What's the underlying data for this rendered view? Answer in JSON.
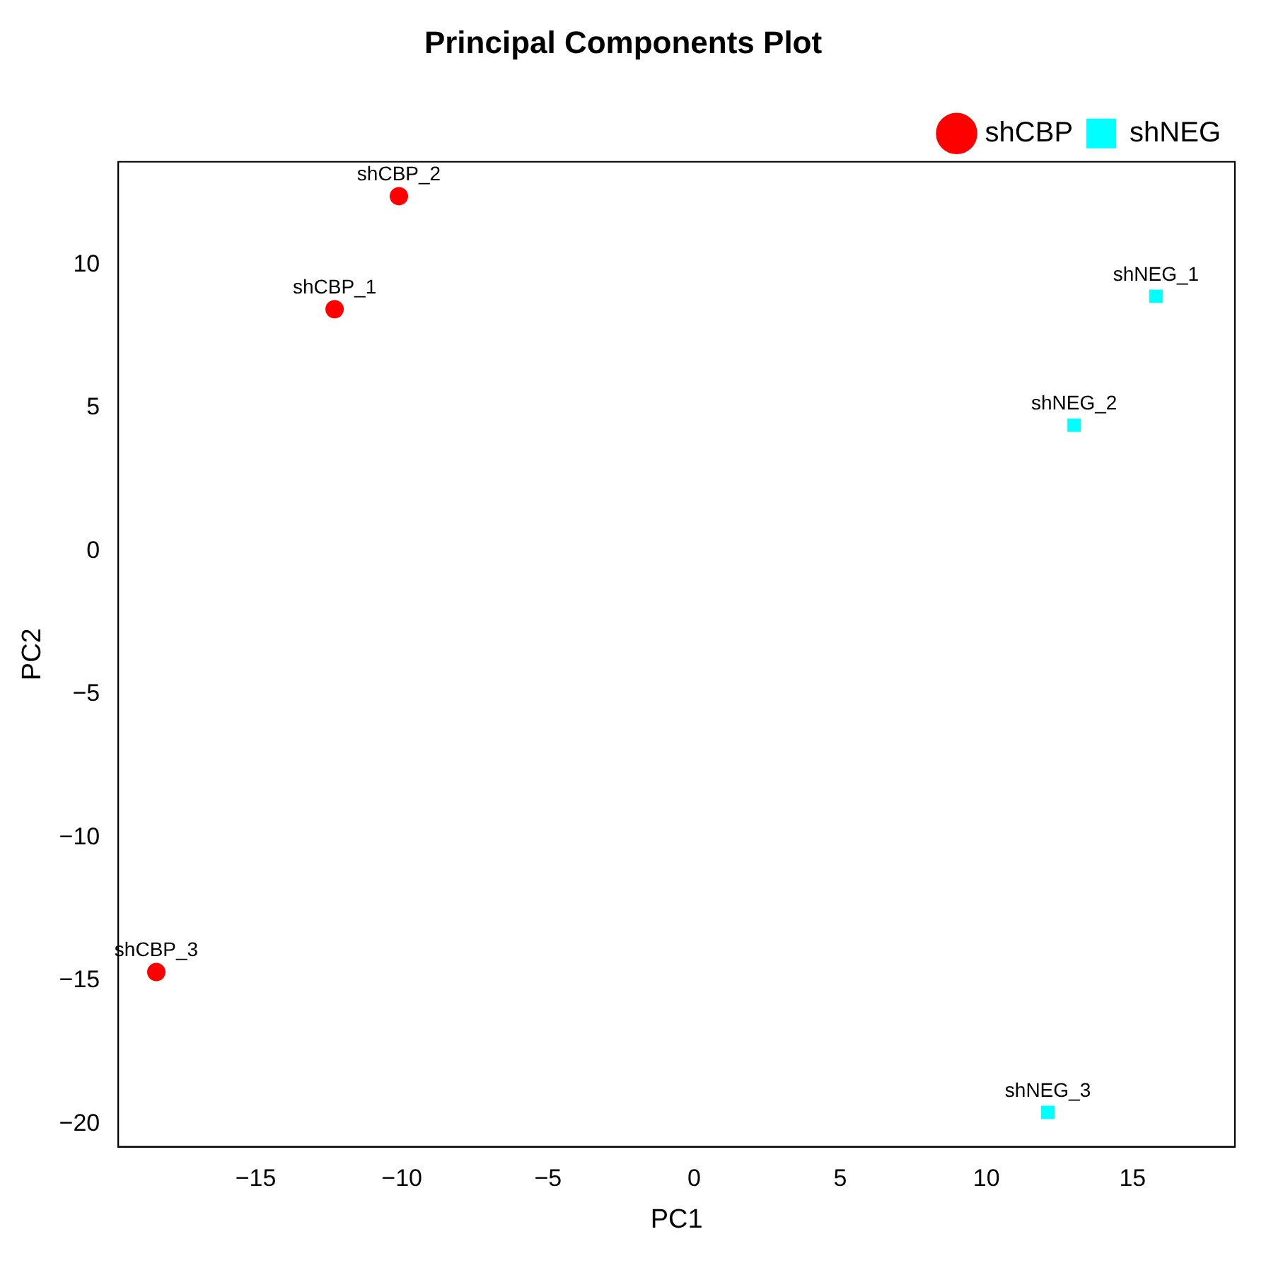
{
  "chart_data": {
    "type": "scatter",
    "title": "Principal Components Plot",
    "xlabel": "PC1",
    "ylabel": "PC2",
    "xlim": [
      -19.7,
      18.5
    ],
    "ylim": [
      -20.8,
      13.6
    ],
    "xticks": [
      -15,
      -10,
      -5,
      0,
      5,
      10,
      15
    ],
    "yticks": [
      -20,
      -15,
      -10,
      -5,
      0,
      5,
      10
    ],
    "grid": false,
    "legend": "top right",
    "series": [
      {
        "name": "shCBP",
        "color": "#ff0000",
        "marker": "circle",
        "x": [
          -12.3,
          -10.1,
          -18.4
        ],
        "values": [
          8.45,
          12.4,
          -14.7
        ]
      },
      {
        "name": "shNEG",
        "color": "#00ffff",
        "marker": "square",
        "x": [
          15.8,
          13.0,
          12.1
        ],
        "values": [
          8.9,
          4.4,
          -19.6
        ]
      }
    ],
    "annotations": [
      {
        "text": "shCBP_1",
        "x": -12.3,
        "y": 8.45
      },
      {
        "text": "shCBP_2",
        "x": -10.1,
        "y": 12.4
      },
      {
        "text": "shCBP_3",
        "x": -18.4,
        "y": -14.7
      },
      {
        "text": "shNEG_1",
        "x": 15.8,
        "y": 8.9
      },
      {
        "text": "shNEG_2",
        "x": 13.0,
        "y": 4.4
      },
      {
        "text": "shNEG_3",
        "x": 12.1,
        "y": -19.6
      }
    ]
  }
}
